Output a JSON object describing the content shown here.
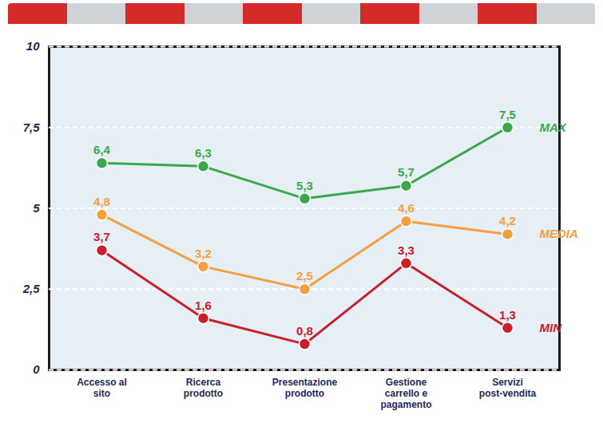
{
  "chart_data": {
    "type": "line",
    "categories": [
      "Accesso al sito",
      "Ricerca prodotto",
      "Presentazione prodotto",
      "Gestione carrello e pagamento",
      "Servizi post-vendita"
    ],
    "series": [
      {
        "name": "MAX",
        "color": "#3aa84a",
        "values": [
          6.4,
          6.3,
          5.3,
          5.7,
          7.5
        ],
        "value_labels": [
          "6,4",
          "6,3",
          "5,3",
          "5,7",
          "7,5"
        ],
        "marker": "circle",
        "line_style": "solid"
      },
      {
        "name": "MEDIA",
        "color": "#f5a040",
        "values": [
          4.8,
          3.2,
          2.5,
          4.6,
          4.2
        ],
        "value_labels": [
          "4,8",
          "3,2",
          "2,5",
          "4,6",
          "4,2"
        ],
        "marker": "circle",
        "line_style": "solid"
      },
      {
        "name": "MIN",
        "color": "#c8202a",
        "values": [
          3.7,
          1.6,
          0.8,
          3.3,
          1.3
        ],
        "value_labels": [
          "3,7",
          "1,6",
          "0,8",
          "3,3",
          "1,3"
        ],
        "marker": "circle",
        "line_style": "solid"
      }
    ],
    "ylim": [
      0,
      10
    ],
    "yticks": [
      0,
      {
        "value": 2.5,
        "label": "2,5"
      },
      5,
      {
        "value": 7.5,
        "label": "7,5"
      },
      10
    ],
    "grid": true,
    "legend": "right",
    "data_labels": true
  }
}
